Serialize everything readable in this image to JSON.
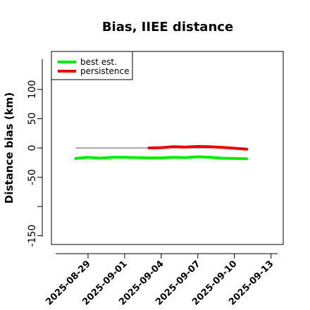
{
  "chart_data": {
    "type": "line",
    "title": "Bias, IIEE distance",
    "xlabel": "",
    "ylabel": "Distance bias (km)",
    "x_axis_type": "date",
    "xlim": [
      "2025-08-26",
      "2025-09-14"
    ],
    "ylim": [
      -165,
      165
    ],
    "xticks": [
      "2025-08-29",
      "2025-09-01",
      "2025-09-04",
      "2025-09-07",
      "2025-09-10",
      "2025-09-13"
    ],
    "yticks": [
      -150,
      -100,
      -50,
      0,
      50,
      100
    ],
    "ytick_labels": [
      "-150",
      "",
      "-50",
      "0",
      "50",
      "100"
    ],
    "legend_position": "top-left",
    "grid": false,
    "reference_line": {
      "y": 0,
      "x_range": [
        "2025-08-28",
        "2025-09-11"
      ],
      "color": "#555555"
    },
    "series": [
      {
        "name": "best est.",
        "color": "#00ee00",
        "x": [
          "2025-08-28",
          "2025-08-29",
          "2025-08-30",
          "2025-08-31",
          "2025-09-01",
          "2025-09-02",
          "2025-09-03",
          "2025-09-04",
          "2025-09-05",
          "2025-09-06",
          "2025-09-07",
          "2025-09-08",
          "2025-09-09",
          "2025-09-10",
          "2025-09-11"
        ],
        "values": [
          -18,
          -16,
          -17.5,
          -16,
          -16,
          -16.5,
          -17,
          -17,
          -16,
          -16.5,
          -15,
          -16,
          -17.5,
          -18,
          -18.5
        ]
      },
      {
        "name": "persistence",
        "color": "#ee0000",
        "x": [
          "2025-09-03",
          "2025-09-04",
          "2025-09-05",
          "2025-09-06",
          "2025-09-07",
          "2025-09-08",
          "2025-09-09",
          "2025-09-10",
          "2025-09-11"
        ],
        "values": [
          0,
          0.5,
          2,
          1.5,
          2.5,
          2,
          1,
          -0.5,
          -2
        ]
      }
    ]
  }
}
